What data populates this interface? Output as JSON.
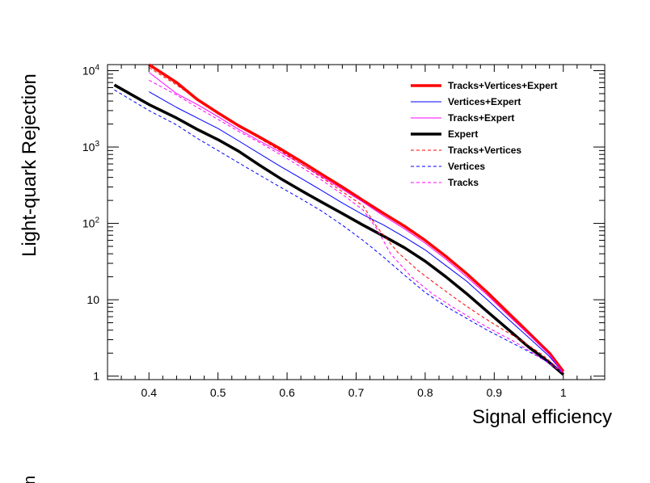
{
  "chart_data": {
    "type": "line",
    "title": "",
    "xlabel": "Signal efficiency",
    "ylabel": "Light-quark Rejection",
    "xlim": [
      0.34,
      1.06
    ],
    "ylim": [
      0.9,
      12000
    ],
    "y_scale": "log",
    "x_ticks": [
      {
        "value": 0.4,
        "label": "0.4"
      },
      {
        "value": 0.5,
        "label": "0.5"
      },
      {
        "value": 0.6,
        "label": "0.6"
      },
      {
        "value": 0.7,
        "label": "0.7"
      },
      {
        "value": 0.8,
        "label": "0.8"
      },
      {
        "value": 0.9,
        "label": "0.9"
      },
      {
        "value": 1.0,
        "label": "1"
      }
    ],
    "y_ticks": [
      {
        "value": 1,
        "label": "1"
      },
      {
        "value": 10,
        "label": "10"
      },
      {
        "value": 100,
        "label": "10",
        "exponent": "2"
      },
      {
        "value": 1000,
        "label": "10",
        "exponent": "3"
      },
      {
        "value": 10000,
        "label": "10",
        "exponent": "4"
      }
    ],
    "legend_position": "top-right",
    "series": [
      {
        "name": "Tracks+Vertices+Expert",
        "color": "#ff0000",
        "width": 3.5,
        "dash": "solid",
        "x": [
          0.4,
          0.44,
          0.47,
          0.5,
          0.53,
          0.56,
          0.59,
          0.62,
          0.65,
          0.68,
          0.71,
          0.74,
          0.77,
          0.8,
          0.83,
          0.86,
          0.89,
          0.92,
          0.95,
          0.98,
          1.0
        ],
        "y": [
          12000,
          7000,
          4200,
          2800,
          1900,
          1350,
          950,
          650,
          440,
          300,
          200,
          135,
          92,
          60,
          37,
          22,
          12.5,
          6.8,
          3.7,
          2.0,
          1.15
        ]
      },
      {
        "name": "Vertices+Expert",
        "color": "#0000ff",
        "width": 1,
        "dash": "solid",
        "x": [
          0.4,
          0.44,
          0.47,
          0.5,
          0.53,
          0.56,
          0.59,
          0.62,
          0.65,
          0.68,
          0.71,
          0.74,
          0.77,
          0.8,
          0.83,
          0.86,
          0.89,
          0.92,
          0.95,
          0.98,
          1.0
        ],
        "y": [
          5300,
          3300,
          2400,
          1750,
          1200,
          820,
          560,
          390,
          270,
          185,
          130,
          95,
          66,
          45,
          28,
          17.5,
          10,
          5.6,
          3.2,
          1.8,
          1.1
        ]
      },
      {
        "name": "Tracks+Expert",
        "color": "#ff00ff",
        "width": 1,
        "dash": "solid",
        "x": [
          0.4,
          0.44,
          0.47,
          0.5,
          0.53,
          0.56,
          0.59,
          0.62,
          0.65,
          0.68,
          0.71,
          0.74,
          0.77,
          0.8,
          0.83,
          0.86,
          0.89,
          0.92,
          0.95,
          0.98,
          1.0
        ],
        "y": [
          9500,
          5000,
          3600,
          2500,
          1700,
          1200,
          860,
          600,
          410,
          280,
          190,
          125,
          85,
          55,
          34,
          20,
          11.5,
          6.3,
          3.5,
          1.9,
          1.1
        ]
      },
      {
        "name": "Expert",
        "color": "#000000",
        "width": 3.5,
        "dash": "solid",
        "x": [
          0.35,
          0.4,
          0.44,
          0.47,
          0.5,
          0.53,
          0.56,
          0.59,
          0.62,
          0.65,
          0.68,
          0.71,
          0.74,
          0.77,
          0.8,
          0.83,
          0.86,
          0.89,
          0.92,
          0.95,
          0.98,
          1.0
        ],
        "y": [
          6500,
          3600,
          2400,
          1700,
          1250,
          880,
          580,
          390,
          270,
          190,
          135,
          95,
          68,
          48,
          32,
          20,
          12,
          7,
          4.1,
          2.4,
          1.5,
          1.05
        ]
      },
      {
        "name": "Tracks+Vertices",
        "color": "#ff0000",
        "width": 1,
        "dash": "dashed",
        "x": [
          0.4,
          0.44,
          0.47,
          0.5,
          0.53,
          0.56,
          0.59,
          0.62,
          0.65,
          0.68,
          0.71,
          0.73,
          0.76,
          0.79,
          0.82,
          0.85,
          0.88,
          0.91,
          0.94,
          0.97,
          1.0
        ],
        "y": [
          11000,
          6500,
          4200,
          2900,
          1900,
          1300,
          900,
          600,
          400,
          260,
          170,
          90,
          42,
          24,
          15,
          9.5,
          6.2,
          4.2,
          2.9,
          1.9,
          1.1
        ]
      },
      {
        "name": "Vertices",
        "color": "#0000ff",
        "width": 1,
        "dash": "dashed",
        "x": [
          0.35,
          0.4,
          0.44,
          0.47,
          0.5,
          0.53,
          0.56,
          0.59,
          0.62,
          0.65,
          0.68,
          0.71,
          0.74,
          0.77,
          0.8,
          0.83,
          0.86,
          0.89,
          0.92,
          0.95,
          0.98,
          1.0
        ],
        "y": [
          5600,
          3000,
          1950,
          1300,
          900,
          620,
          430,
          300,
          210,
          145,
          95,
          60,
          36,
          21,
          12.5,
          8.2,
          5.7,
          4.0,
          2.9,
          2.1,
          1.5,
          1.1
        ]
      },
      {
        "name": "Tracks",
        "color": "#ff00ff",
        "width": 1,
        "dash": "dashed",
        "x": [
          0.4,
          0.44,
          0.47,
          0.5,
          0.53,
          0.56,
          0.59,
          0.62,
          0.65,
          0.68,
          0.71,
          0.73,
          0.75,
          0.78,
          0.81,
          0.84,
          0.87,
          0.9,
          0.93,
          0.96,
          1.0
        ],
        "y": [
          7500,
          4800,
          3300,
          2300,
          1600,
          1150,
          800,
          550,
          370,
          240,
          150,
          85,
          40,
          20,
          12,
          8,
          5.5,
          3.9,
          2.8,
          1.9,
          1.1
        ]
      }
    ]
  },
  "stray_glyph": "n"
}
